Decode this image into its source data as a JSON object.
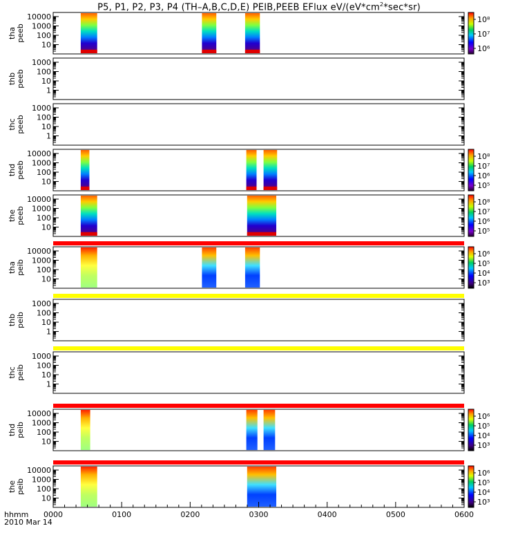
{
  "title_parts": [
    "P5, P1, P2, P3, P4 (TH–A,B,C,D,E) PEIB,PEEB EFlux eV/(eV*cm",
    "2",
    "*sec*sr)"
  ],
  "chart_data": {
    "type": "heatmap",
    "x_tick_labels": [
      "0000",
      "0100",
      "0200",
      "0300",
      "0400",
      "0500",
      "0600"
    ],
    "x_label_left": "hhmm",
    "date_label": "2010 Mar 14",
    "panels": [
      {
        "id": "tha-peeb",
        "line1": "tha",
        "line2": "peeb",
        "yticks": [
          "10000",
          "1000",
          "100",
          "10"
        ],
        "colorbar": [
          "10⁸",
          "10⁷",
          "10⁶"
        ],
        "cb_style": "e",
        "bar_top": null,
        "blocks": [
          [
            0.067,
            0.107
          ],
          [
            0.362,
            0.397
          ],
          [
            0.467,
            0.503
          ]
        ],
        "style": "e",
        "empty": false
      },
      {
        "id": "thb-peeb",
        "line1": "thb",
        "line2": "peeb",
        "yticks": [
          "1000",
          "100",
          "10",
          "1"
        ],
        "colorbar": null,
        "cb_style": null,
        "bar_top": null,
        "blocks": [],
        "style": null,
        "empty": true
      },
      {
        "id": "thc-peeb",
        "line1": "thc",
        "line2": "peeb",
        "yticks": [
          "1000",
          "100",
          "10",
          "1"
        ],
        "colorbar": null,
        "cb_style": null,
        "bar_top": null,
        "blocks": [],
        "style": null,
        "empty": true
      },
      {
        "id": "thd-peeb",
        "line1": "thd",
        "line2": "peeb",
        "yticks": [
          "10000",
          "1000",
          "100",
          "10"
        ],
        "colorbar": [
          "10⁸",
          "10⁷",
          "10⁶",
          "10⁵"
        ],
        "cb_style": "e",
        "bar_top": null,
        "blocks": [
          [
            0.067,
            0.088
          ],
          [
            0.47,
            0.495
          ],
          [
            0.512,
            0.545
          ]
        ],
        "style": "e",
        "empty": false
      },
      {
        "id": "the-peeb",
        "line1": "the",
        "line2": "peeb",
        "yticks": [
          "10000",
          "1000",
          "100",
          "10"
        ],
        "colorbar": [
          "10⁸",
          "10⁷",
          "10⁶",
          "10⁵"
        ],
        "cb_style": "e",
        "bar_top": null,
        "blocks": [
          [
            0.067,
            0.107
          ],
          [
            0.472,
            0.543
          ]
        ],
        "style": "e",
        "empty": false
      },
      {
        "id": "tha-peib",
        "line1": "tha",
        "line2": "peib",
        "yticks": [
          "10000",
          "1000",
          "100",
          "10"
        ],
        "colorbar": [
          "10⁶",
          "10⁵",
          "10⁴",
          "10³"
        ],
        "cb_style": "i",
        "bar_top": "#ff0000",
        "blocks": [
          [
            0.067,
            0.107
          ],
          [
            0.362,
            0.397
          ],
          [
            0.467,
            0.503
          ]
        ],
        "style": "i",
        "empty": false
      },
      {
        "id": "thb-peib",
        "line1": "thb",
        "line2": "peib",
        "yticks": [
          "1000",
          "100",
          "10",
          "1"
        ],
        "colorbar": null,
        "cb_style": null,
        "bar_top": "#ffff00",
        "blocks": [],
        "style": null,
        "empty": true
      },
      {
        "id": "thc-peib",
        "line1": "thc",
        "line2": "peib",
        "yticks": [
          "1000",
          "100",
          "10",
          "1"
        ],
        "colorbar": null,
        "cb_style": null,
        "bar_top": "#ffff00",
        "blocks": [],
        "style": null,
        "empty": true
      },
      {
        "id": "thd-peib",
        "line1": "thd",
        "line2": "peib",
        "yticks": [
          "10000",
          "1000",
          "100",
          "10"
        ],
        "colorbar": [
          "10⁶",
          "10⁵",
          "10⁴",
          "10³"
        ],
        "cb_style": "i",
        "bar_top": "#ff0000",
        "blocks": [
          [
            0.067,
            0.09
          ],
          [
            0.47,
            0.497
          ],
          [
            0.512,
            0.54
          ]
        ],
        "style": "i",
        "empty": false
      },
      {
        "id": "the-peib",
        "line1": "the",
        "line2": "peib",
        "yticks": [
          "10000",
          "1000",
          "100",
          "10"
        ],
        "colorbar": [
          "10⁶",
          "10⁵",
          "10⁴",
          "10³"
        ],
        "cb_style": "i",
        "bar_top": "#ff0000",
        "blocks": [
          [
            0.067,
            0.107
          ],
          [
            0.472,
            0.543
          ]
        ],
        "style": "i",
        "empty": false
      }
    ]
  }
}
